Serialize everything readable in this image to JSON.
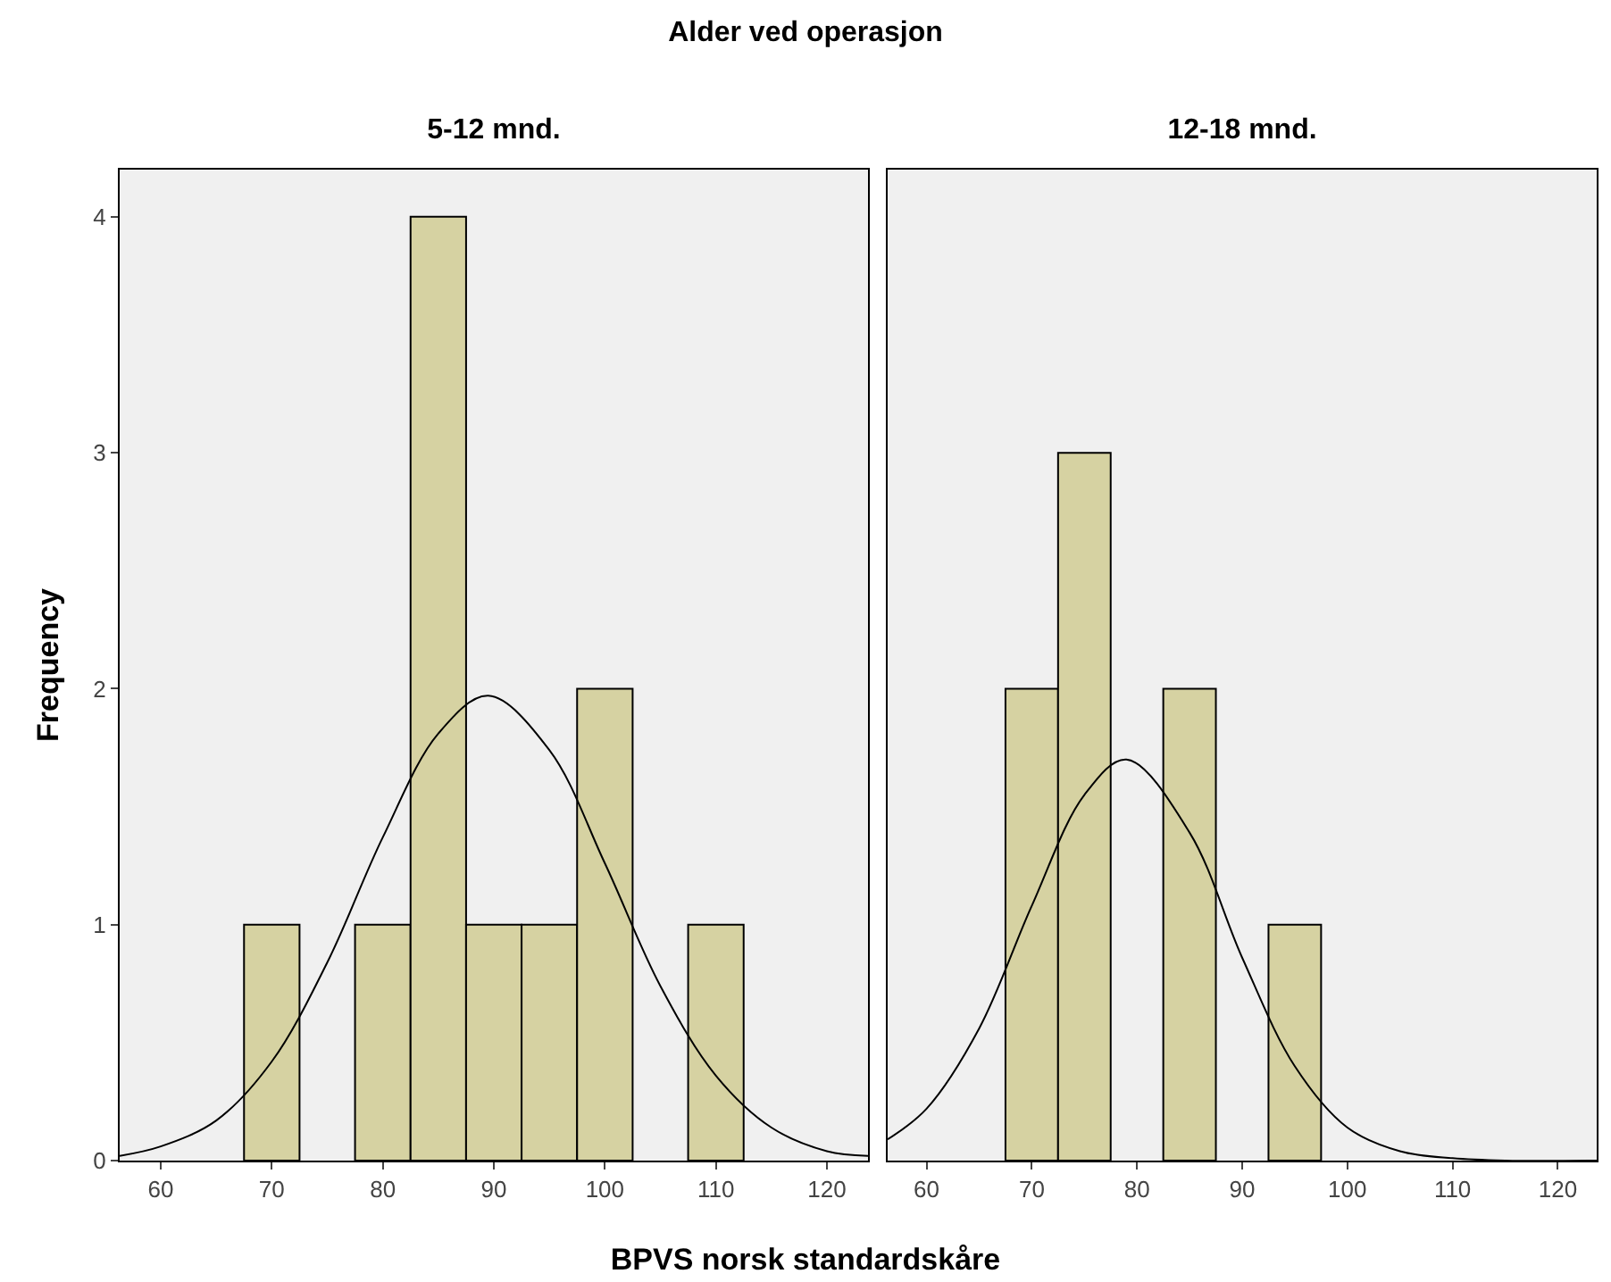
{
  "chart_data": [
    {
      "type": "histogram",
      "title": "5-12 mnd.",
      "annotations": [
        "Alder ved operasjon"
      ],
      "xlabel": "BPVS norsk standardskåre",
      "ylabel": "Frequency",
      "bins": [
        67.5,
        72.5,
        77.5,
        82.5,
        87.5,
        92.5,
        97.5,
        102.5,
        107.5,
        112.5
      ],
      "series": [
        {
          "color": "#d6d2a2",
          "values": [
            1,
            0,
            1,
            4,
            1,
            1,
            2,
            0,
            1
          ]
        },
        {
          "type": "line",
          "color": "#000000",
          "x": [
            56.3,
            60,
            65,
            70,
            75,
            80,
            85,
            89.5,
            95,
            100,
            105,
            110,
            115,
            120,
            123.7
          ],
          "values": [
            0.02,
            0.06,
            0.17,
            0.42,
            0.84,
            1.37,
            1.81,
            1.97,
            1.74,
            1.26,
            0.74,
            0.36,
            0.14,
            0.04,
            0.02
          ]
        }
      ],
      "xlim": [
        56.3,
        123.7
      ],
      "xticks": [
        60,
        70,
        80,
        90,
        100,
        110,
        120
      ],
      "ylim": [
        0,
        4.2
      ],
      "yticks": [
        0,
        1,
        2,
        3,
        4
      ],
      "grid": false,
      "legend": false
    },
    {
      "type": "histogram",
      "title": "12-18 mnd.",
      "bins": [
        67.5,
        72.5,
        77.5,
        82.5,
        87.5,
        92.5,
        97.5
      ],
      "series": [
        {
          "color": "#d6d2a2",
          "values": [
            2,
            3,
            0,
            2,
            0,
            1
          ]
        },
        {
          "type": "line",
          "color": "#000000",
          "x": [
            56.3,
            60,
            65,
            70,
            75,
            79,
            85,
            90,
            95,
            100,
            105,
            110,
            115,
            123.7
          ],
          "values": [
            0.09,
            0.22,
            0.56,
            1.08,
            1.55,
            1.7,
            1.39,
            0.86,
            0.4,
            0.14,
            0.04,
            0.01,
            0,
            0
          ]
        }
      ],
      "xlim": [
        56.3,
        123.7
      ],
      "xticks": [
        60,
        70,
        80,
        90,
        100,
        110,
        120
      ],
      "ylim": [
        0,
        4.2
      ],
      "yticks": [
        0,
        1,
        2,
        3,
        4
      ],
      "tick_labels": "x",
      "grid": false,
      "legend": false
    }
  ]
}
